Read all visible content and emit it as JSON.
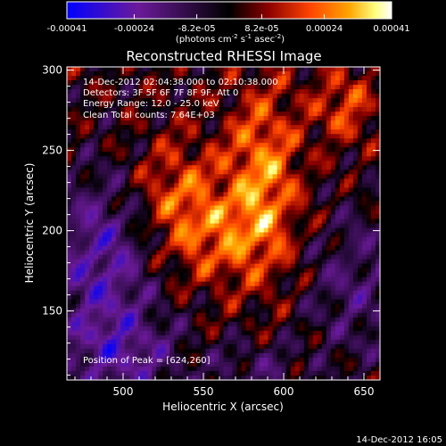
{
  "colorbar": {
    "ticks": [
      "-0.00041",
      "-0.00024",
      "-8.2e-05",
      "8.2e-05",
      "0.00024",
      "0.00041"
    ],
    "tick_values": [
      -0.00041,
      -0.00024,
      -8.2e-05,
      8.2e-05,
      0.00024,
      0.00041
    ],
    "range": [
      -0.00041,
      0.00041
    ],
    "unit_main": "(photons cm",
    "unit_sup1": "-2",
    "unit_mid": " s",
    "unit_sup2": "-1",
    "unit_end": " asec",
    "unit_sup3": "-2",
    "unit_close": ")",
    "colormap": [
      "#0000ff",
      "#6b1a9a",
      "#000000",
      "#8b0000",
      "#ff4500",
      "#ffa500",
      "#ffff80",
      "#ffffff"
    ]
  },
  "chart_data": {
    "type": "heatmap",
    "title": "Reconstructed RHESSI Image",
    "xlabel": "Heliocentric X (arcsec)",
    "ylabel": "Heliocentric Y (arcsec)",
    "xlim": [
      465,
      660
    ],
    "ylim": [
      107,
      302
    ],
    "x_ticks": [
      500,
      550,
      600,
      650
    ],
    "y_ticks": [
      150,
      200,
      250,
      300
    ],
    "x_tick_labels": [
      "500",
      "550",
      "600",
      "650"
    ],
    "y_tick_labels": [
      "150",
      "200",
      "250",
      "300"
    ],
    "peak": [
      624,
      260
    ],
    "annotations": {
      "time": "14-Dec-2012 02:04:38.000 to 02:10:38.000",
      "detectors": "Detectors: 3F 5F 6F 7F 8F 9F, Att 0",
      "energy": "Energy Range: 12.0 - 25.0 keV",
      "clean": "Clean    Total counts: 7.64E+03",
      "peak_label": "Position of Peak = [624,260]"
    }
  },
  "footer": {
    "timestamp": "14-Dec-2012 16:05"
  }
}
